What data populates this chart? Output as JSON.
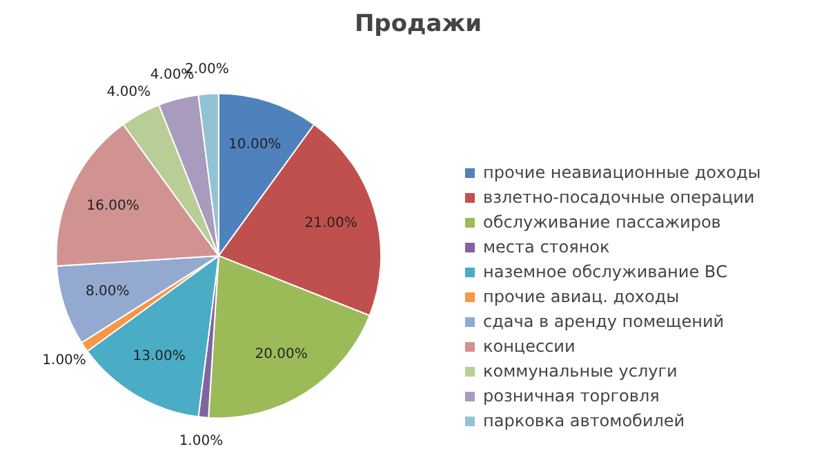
{
  "chart_data": {
    "type": "pie",
    "title": "Продажи",
    "categories": [
      "прочие неавиационные доходы",
      "взлетно-посадочные операции",
      "обслуживание пассажиров",
      "места стоянок",
      "наземное обслуживание ВС",
      "прочие авиац. доходы",
      "сдача в аренду помещений",
      "концессии",
      "коммунальные услуги",
      "розничная торговля",
      "парковка автомобилей"
    ],
    "values": [
      10,
      21,
      20,
      1,
      13,
      1,
      8,
      16,
      4,
      4,
      2
    ],
    "colors": [
      "#4f81bd",
      "#c0504d",
      "#9bbb59",
      "#8064a2",
      "#4bacc6",
      "#f79646",
      "#93a9cf",
      "#d19392",
      "#b9cd96",
      "#a99bbd",
      "#91c3d5"
    ],
    "value_labels": [
      "10.00%",
      "21.00%",
      "20.00%",
      "1.00%",
      "13.00%",
      "1.00%",
      "8.00%",
      "16.00%",
      "4.00%",
      "4.00%",
      "2.00%"
    ],
    "legend": "right"
  }
}
